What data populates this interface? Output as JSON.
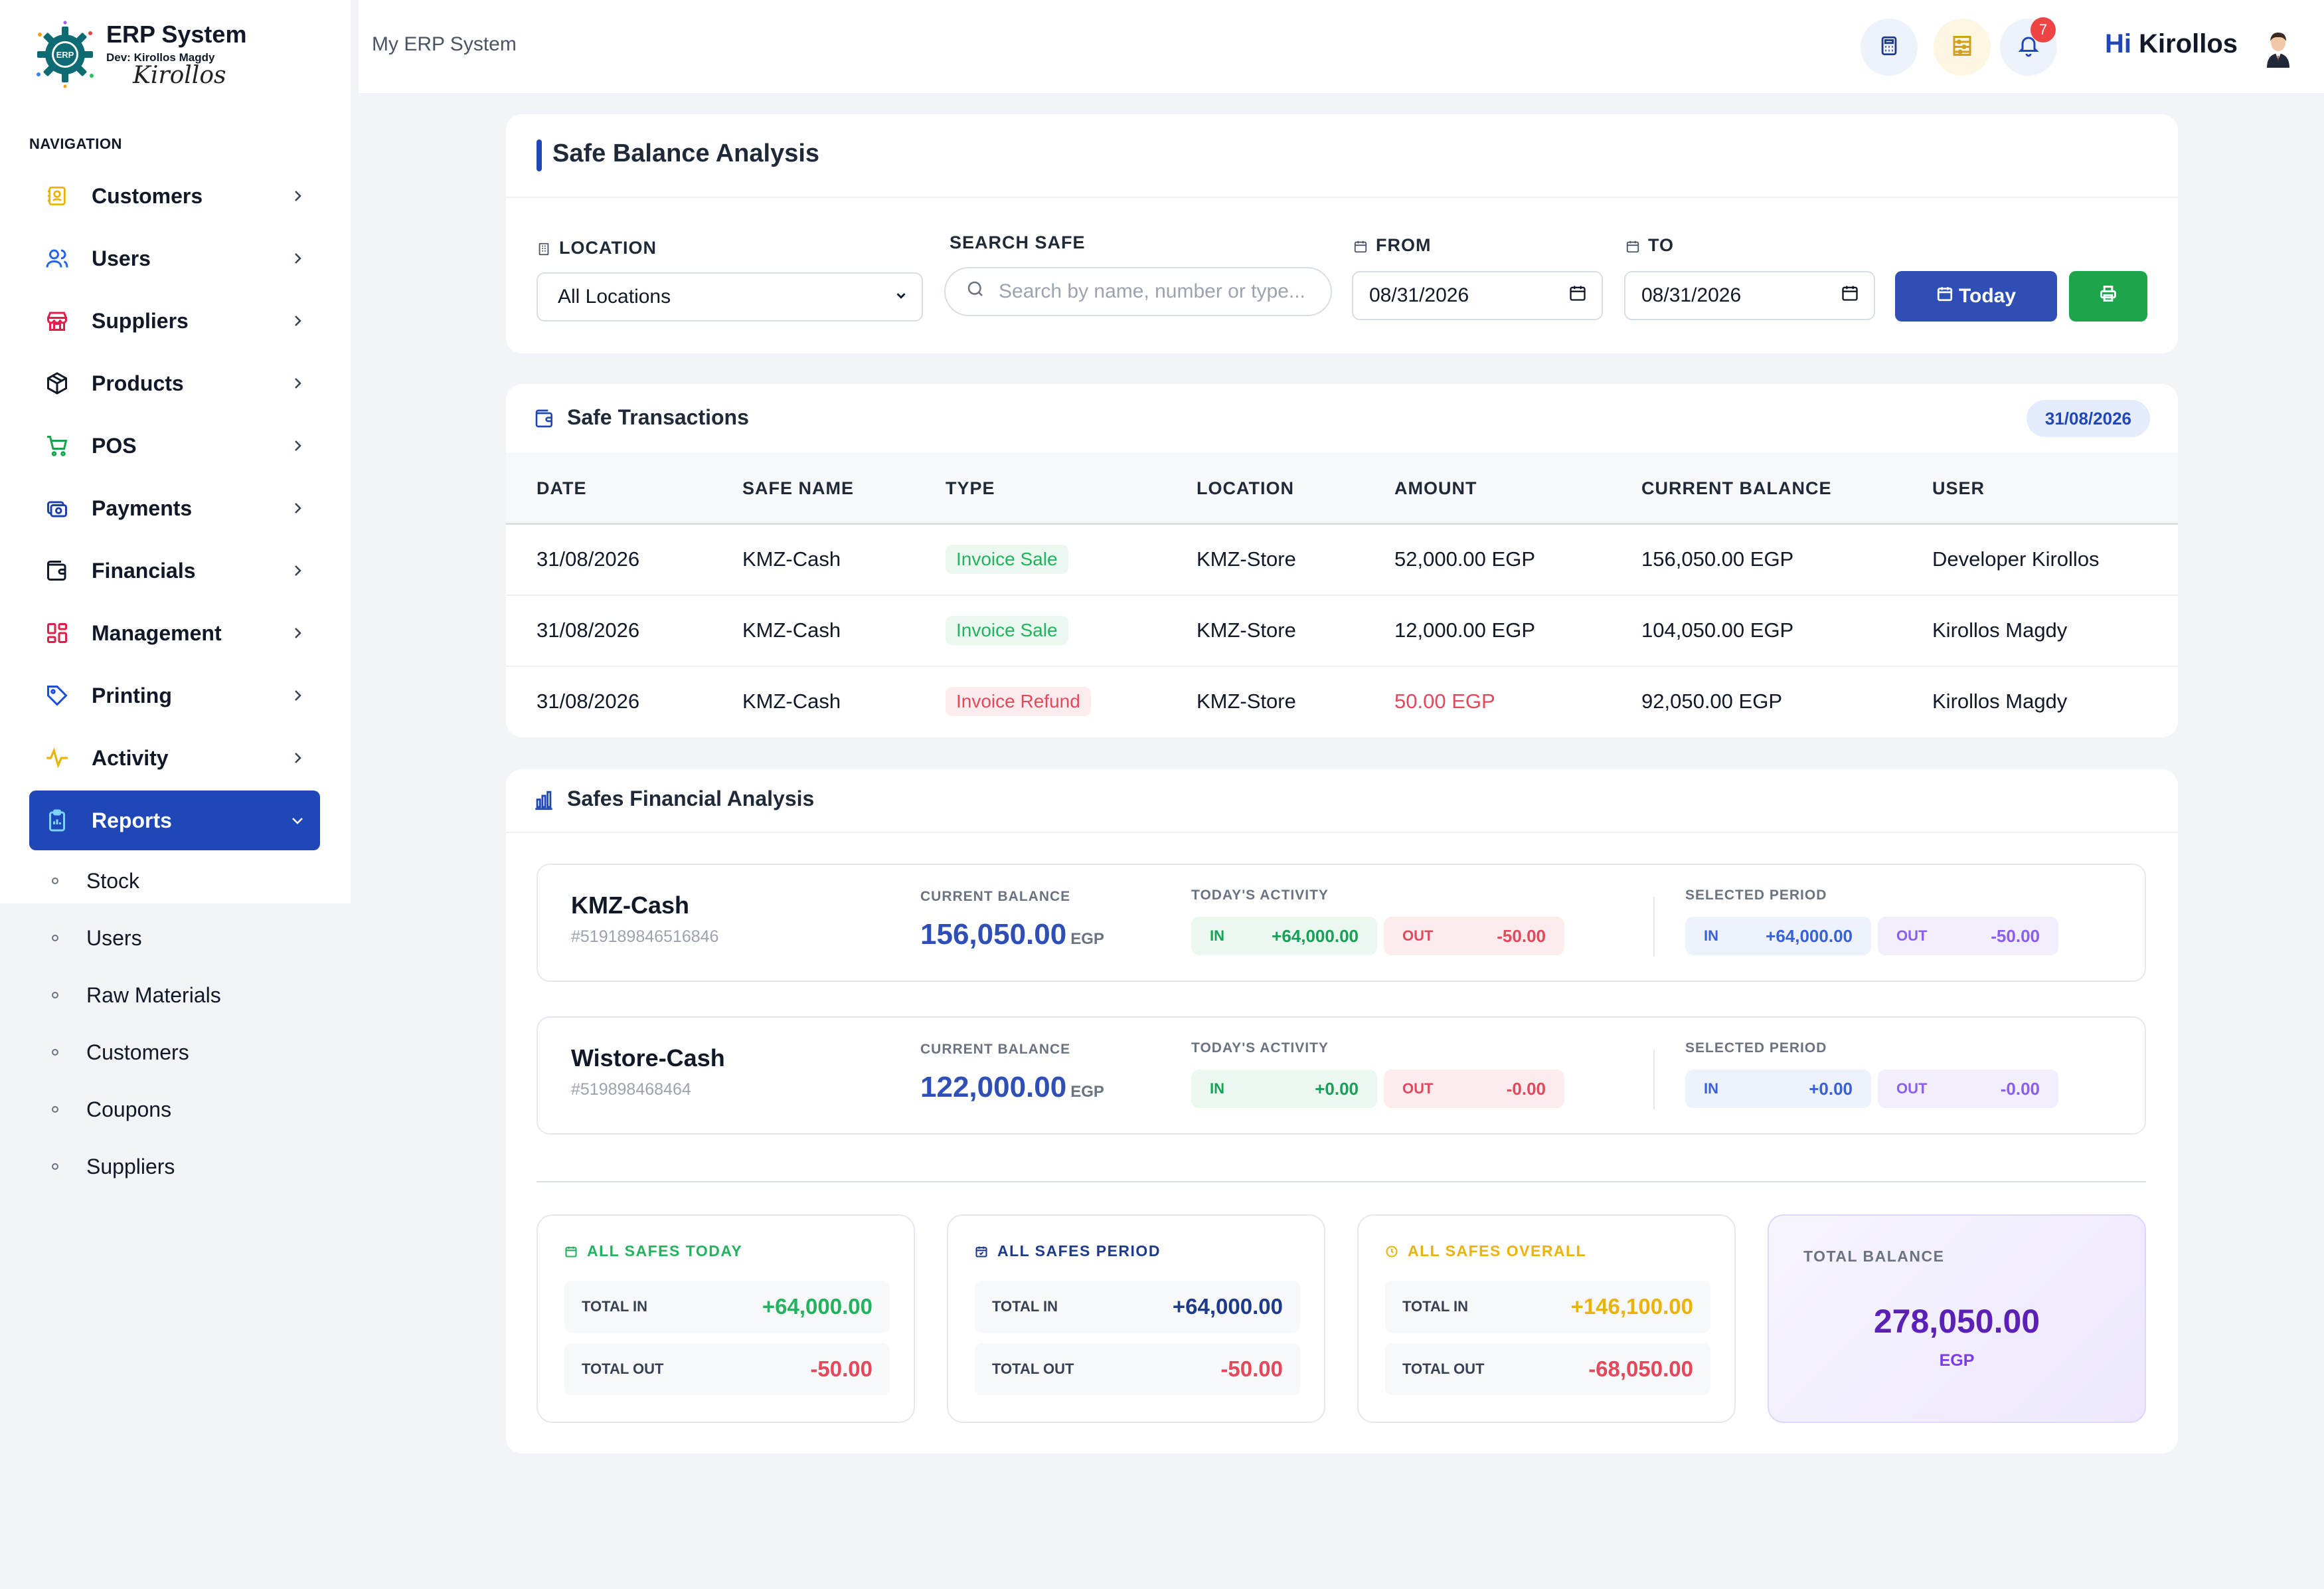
{
  "brand": {
    "title": "ERP System",
    "subtitle": "Dev: Kirollos Magdy",
    "signature": "Kirollos",
    "logo_text": "ERP"
  },
  "nav": {
    "heading": "NAVIGATION",
    "items": [
      {
        "label": "Customers",
        "icon": "contact-book-icon",
        "color": "#eab308"
      },
      {
        "label": "Users",
        "icon": "users-icon",
        "color": "#2563eb"
      },
      {
        "label": "Suppliers",
        "icon": "store-icon",
        "color": "#e11d48"
      },
      {
        "label": "Products",
        "icon": "box-icon",
        "color": "#111827"
      },
      {
        "label": "POS",
        "icon": "cart-icon",
        "color": "#16a34a"
      },
      {
        "label": "Payments",
        "icon": "payments-icon",
        "color": "#1e40af"
      },
      {
        "label": "Financials",
        "icon": "wallet-icon",
        "color": "#111827"
      },
      {
        "label": "Management",
        "icon": "grid-icon",
        "color": "#e11d48"
      },
      {
        "label": "Printing",
        "icon": "tag-icon",
        "color": "#1d4ed8"
      },
      {
        "label": "Activity",
        "icon": "pulse-icon",
        "color": "#eab308"
      },
      {
        "label": "Reports",
        "icon": "clipboard-icon",
        "color": "#ffffff",
        "active": true
      }
    ],
    "sub_items": [
      "Stock",
      "Users",
      "Raw Materials",
      "Customers",
      "Coupons",
      "Suppliers"
    ]
  },
  "topbar": {
    "breadcrumb": "My ERP System",
    "notifications_count": "7",
    "greeting_hi": "Hi",
    "greeting_name": "Kirollos"
  },
  "filters": {
    "title": "Safe Balance Analysis",
    "location_label": "LOCATION",
    "location_value": "All Locations",
    "search_label": "SEARCH SAFE",
    "search_placeholder": "Search by name, number or type...",
    "from_label": "FROM",
    "from_value": "08/31/2026",
    "to_label": "TO",
    "to_value": "08/31/2026",
    "today_button": "Today"
  },
  "transactions": {
    "title": "Safe Transactions",
    "date_pill": "31/08/2026",
    "columns": [
      "DATE",
      "SAFE NAME",
      "TYPE",
      "LOCATION",
      "AMOUNT",
      "CURRENT BALANCE",
      "USER"
    ],
    "rows": [
      {
        "date": "31/08/2026",
        "safe": "KMZ-Cash",
        "type": "Invoice Sale",
        "kind": "sale",
        "location": "KMZ-Store",
        "amount": "52,000.00 EGP",
        "balance": "156,050.00 EGP",
        "user": "Developer Kirollos"
      },
      {
        "date": "31/08/2026",
        "safe": "KMZ-Cash",
        "type": "Invoice Sale",
        "kind": "sale",
        "location": "KMZ-Store",
        "amount": "12,000.00 EGP",
        "balance": "104,050.00 EGP",
        "user": "Kirollos Magdy"
      },
      {
        "date": "31/08/2026",
        "safe": "KMZ-Cash",
        "type": "Invoice Refund",
        "kind": "refund",
        "location": "KMZ-Store",
        "amount": "50.00 EGP",
        "balance": "92,050.00 EGP",
        "user": "Kirollos Magdy"
      }
    ]
  },
  "analysis": {
    "title": "Safes Financial Analysis",
    "labels": {
      "current_balance": "CURRENT BALANCE",
      "todays_activity": "TODAY'S ACTIVITY",
      "selected_period": "SELECTED PERIOD",
      "in": "IN",
      "out": "OUT",
      "currency": "EGP"
    },
    "safes": [
      {
        "name": "KMZ-Cash",
        "number": "#519189846516846",
        "balance": "156,050.00",
        "today_in": "+64,000.00",
        "today_out": "-50.00",
        "period_in": "+64,000.00",
        "period_out": "-50.00"
      },
      {
        "name": "Wistore-Cash",
        "number": "#519898468464",
        "balance": "122,000.00",
        "today_in": "+0.00",
        "today_out": "-0.00",
        "period_in": "+0.00",
        "period_out": "-0.00"
      }
    ],
    "summaries": [
      {
        "title": "ALL SAFES TODAY",
        "color": "#22b35e",
        "in_label": "TOTAL IN",
        "in_value": "+64,000.00",
        "in_color": "#22b35e",
        "out_label": "TOTAL OUT",
        "out_value": "-50.00"
      },
      {
        "title": "ALL SAFES PERIOD",
        "color": "#1e3a8a",
        "in_label": "TOTAL IN",
        "in_value": "+64,000.00",
        "in_color": "#1e3a8a",
        "out_label": "TOTAL OUT",
        "out_value": "-50.00"
      },
      {
        "title": "ALL SAFES OVERALL",
        "color": "#eab308",
        "in_label": "TOTAL IN",
        "in_value": "+146,100.00",
        "in_color": "#eab308",
        "out_label": "TOTAL OUT",
        "out_value": "-68,050.00"
      }
    ],
    "total": {
      "label": "TOTAL BALANCE",
      "value": "278,050.00",
      "currency": "EGP"
    }
  }
}
